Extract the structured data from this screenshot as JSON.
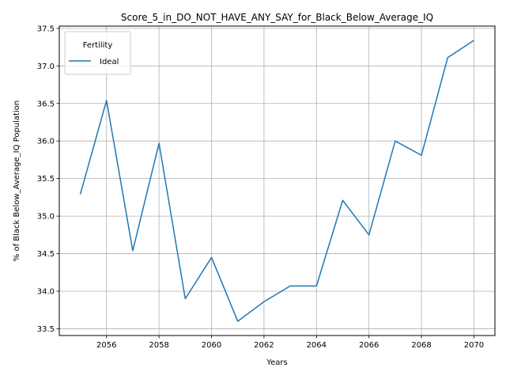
{
  "chart_data": {
    "type": "line",
    "title": "Score_5_in_DO_NOT_HAVE_ANY_SAY_for_Black_Below_Average_IQ",
    "xlabel": "Years",
    "ylabel": "% of Black Below_Average_IQ Population",
    "x": [
      2055,
      2056,
      2057,
      2058,
      2059,
      2060,
      2061,
      2062,
      2063,
      2064,
      2065,
      2066,
      2067,
      2068,
      2069,
      2070
    ],
    "series": [
      {
        "name": "Ideal",
        "color": "#1f77b4",
        "values": [
          35.29,
          36.54,
          34.54,
          35.97,
          33.9,
          34.45,
          33.6,
          33.86,
          34.07,
          34.07,
          35.21,
          34.75,
          36.0,
          35.81,
          37.11,
          37.34
        ]
      }
    ],
    "xlim": [
      2054.2,
      2070.8
    ],
    "ylim": [
      33.41,
      37.53
    ],
    "xticks": [
      "2056",
      "2058",
      "2060",
      "2062",
      "2064",
      "2066",
      "2068",
      "2070"
    ],
    "yticks": [
      "33.5",
      "34.0",
      "34.5",
      "35.0",
      "35.5",
      "36.0",
      "36.5",
      "37.0",
      "37.5"
    ],
    "grid": true,
    "legend": {
      "title": "Fertility",
      "placement": "top-left"
    }
  }
}
